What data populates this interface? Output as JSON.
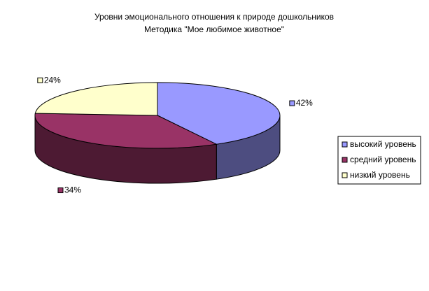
{
  "chart_data": {
    "type": "pie",
    "title": "Уровни эмоционального отношения к природе дошкольников",
    "subtitle": "Методика \"Мое любимое животное\"",
    "categories": [
      "высокий уровень",
      "средний уровень",
      "низкий уровень"
    ],
    "values": [
      42,
      34,
      24
    ],
    "value_labels": [
      "42%",
      "34%",
      "24%"
    ],
    "colors": [
      "#9999ff",
      "#993366",
      "#ffffcc"
    ],
    "legend": "right"
  }
}
